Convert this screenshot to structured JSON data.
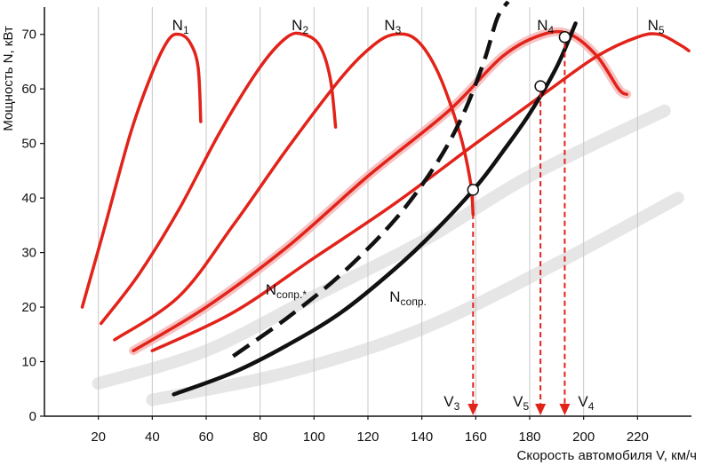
{
  "chart_data": {
    "type": "line",
    "xlabel": "Скорость автомобиля V, км/ч",
    "ylabel": "Мощность N, кВт",
    "xlim": [
      0,
      240
    ],
    "ylim": [
      0,
      75
    ],
    "x_ticks": [
      20,
      40,
      60,
      80,
      100,
      120,
      140,
      160,
      180,
      200,
      220
    ],
    "y_ticks": [
      0,
      10,
      20,
      30,
      40,
      50,
      60,
      70
    ],
    "grid": "vertical",
    "series": [
      {
        "key": "n1",
        "name": "N",
        "sub": "1",
        "color": "#e2231a",
        "points": [
          [
            14,
            20
          ],
          [
            22,
            34
          ],
          [
            32,
            52
          ],
          [
            40,
            63
          ],
          [
            46,
            69
          ],
          [
            50,
            70
          ],
          [
            54,
            68.5
          ],
          [
            57,
            64
          ],
          [
            58,
            54
          ]
        ]
      },
      {
        "key": "n2",
        "name": "N",
        "sub": "2",
        "color": "#e2231a",
        "points": [
          [
            21,
            17
          ],
          [
            35,
            26
          ],
          [
            50,
            38
          ],
          [
            65,
            52
          ],
          [
            80,
            64
          ],
          [
            90,
            69.5
          ],
          [
            96,
            70
          ],
          [
            102,
            68
          ],
          [
            106,
            62
          ],
          [
            108,
            53
          ]
        ]
      },
      {
        "key": "n3",
        "name": "N",
        "sub": "3",
        "color": "#e2231a",
        "points": [
          [
            26,
            14
          ],
          [
            50,
            22
          ],
          [
            70,
            35
          ],
          [
            90,
            49
          ],
          [
            110,
            62
          ],
          [
            122,
            68
          ],
          [
            130,
            70
          ],
          [
            138,
            69
          ],
          [
            146,
            63
          ],
          [
            154,
            52
          ],
          [
            158,
            43
          ],
          [
            159,
            37
          ]
        ]
      },
      {
        "key": "n4",
        "name": "N",
        "sub": "4",
        "color": "#e2231a",
        "points": [
          [
            33,
            12
          ],
          [
            60,
            20
          ],
          [
            90,
            31
          ],
          [
            120,
            44
          ],
          [
            150,
            56
          ],
          [
            170,
            66
          ],
          [
            185,
            70
          ],
          [
            195,
            70
          ],
          [
            205,
            66
          ],
          [
            213,
            60
          ],
          [
            216,
            59
          ]
        ]
      },
      {
        "key": "n5",
        "name": "N",
        "sub": "5",
        "color": "#e2231a",
        "points": [
          [
            40,
            12
          ],
          [
            70,
            19
          ],
          [
            100,
            29
          ],
          [
            130,
            39
          ],
          [
            160,
            50
          ],
          [
            185,
            59
          ],
          [
            205,
            66
          ],
          [
            220,
            69.5
          ],
          [
            228,
            70
          ],
          [
            236,
            68
          ],
          [
            239,
            67
          ]
        ]
      },
      {
        "key": "nsopr",
        "name": "N",
        "sub": "сопр.",
        "color": "#111111",
        "points": [
          [
            48,
            4
          ],
          [
            70,
            8
          ],
          [
            90,
            13
          ],
          [
            110,
            19
          ],
          [
            130,
            27
          ],
          [
            145,
            34
          ],
          [
            160,
            42
          ],
          [
            170,
            48.5
          ],
          [
            180,
            55.5
          ],
          [
            190,
            64
          ],
          [
            197,
            72
          ]
        ]
      },
      {
        "key": "nsopr_star",
        "name": "N",
        "sub": "сопр.*",
        "color": "#111111",
        "points": [
          [
            70,
            11
          ],
          [
            90,
            18
          ],
          [
            110,
            26
          ],
          [
            130,
            36
          ],
          [
            145,
            46
          ],
          [
            155,
            55
          ],
          [
            163,
            65
          ],
          [
            168,
            73
          ],
          [
            172,
            76
          ]
        ]
      }
    ],
    "intersections": [
      {
        "x": 159,
        "y": 41.5,
        "label": "V",
        "sub": "3"
      },
      {
        "x": 184,
        "y": 60.5,
        "label": "V",
        "sub": "5"
      },
      {
        "x": 193,
        "y": 69.5,
        "label": "V",
        "sub": "4"
      }
    ]
  }
}
